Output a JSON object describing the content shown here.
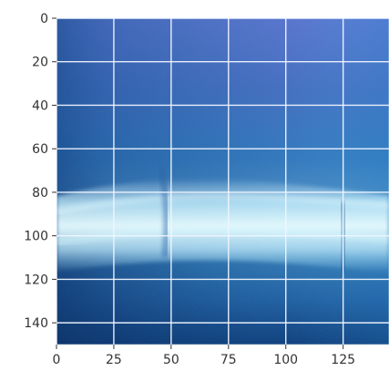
{
  "chart_data": {
    "type": "heatmap",
    "title": "",
    "xlabel": "",
    "ylabel": "",
    "xlim": [
      0,
      145
    ],
    "ylim": [
      150,
      0
    ],
    "x_ticks": [
      0,
      25,
      50,
      75,
      100,
      125
    ],
    "y_ticks": [
      0,
      20,
      40,
      60,
      80,
      100,
      120,
      140
    ],
    "grid": true,
    "y_axis_inverted": true,
    "image_colors": {
      "top": "#5f79d8",
      "middle": "#69b7e5",
      "band_highlight": "#b9eeff",
      "bottom": "#0f3f7c",
      "right": "#2c8fd0"
    },
    "band": {
      "description": "bright pale-cyan horizontal streak",
      "y_start": 70,
      "y_end": 115
    }
  }
}
